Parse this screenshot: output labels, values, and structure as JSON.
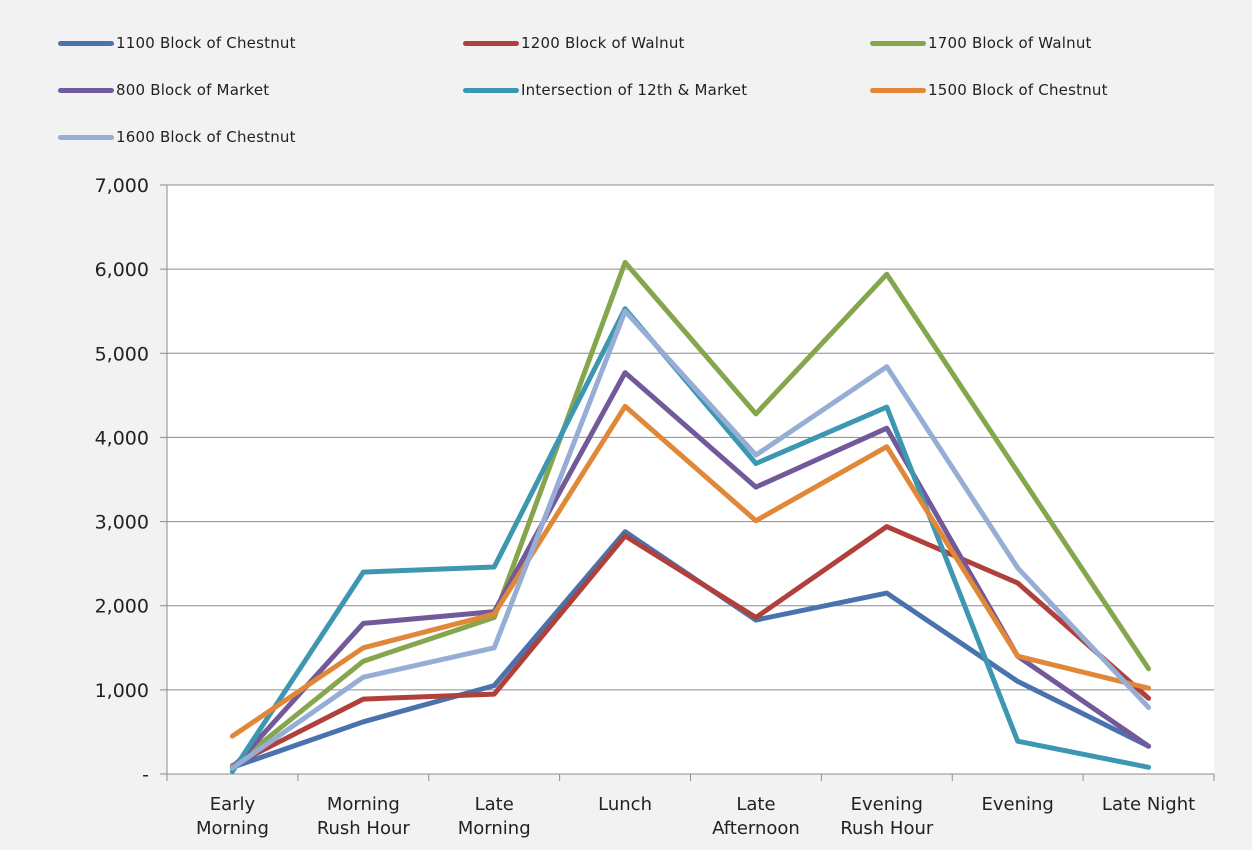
{
  "chart_data": {
    "type": "line",
    "categories": [
      [
        "Early",
        "Morning"
      ],
      [
        "Morning",
        "Rush Hour"
      ],
      [
        "Late",
        "Morning"
      ],
      [
        "Lunch"
      ],
      [
        "Late",
        "Afternoon"
      ],
      [
        "Evening",
        "Rush Hour"
      ],
      [
        "Evening"
      ],
      [
        "Late Night"
      ]
    ],
    "y_tick_labels": [
      "-",
      "1,000",
      "2,000",
      "3,000",
      "4,000",
      "5,000",
      "6,000",
      "7,000"
    ],
    "ylim": [
      0,
      7000
    ],
    "y_step": 1000,
    "grid": "horizontal",
    "legend_position": "top",
    "series": [
      {
        "name": "1100 Block of Chestnut",
        "color": "#4a73ad",
        "values": [
          80,
          620,
          1050,
          2880,
          1830,
          2150,
          1100,
          330
        ]
      },
      {
        "name": "1200 Block of Walnut",
        "color": "#b0403c",
        "values": [
          100,
          890,
          950,
          2830,
          1860,
          2940,
          2270,
          900
        ]
      },
      {
        "name": "1700 Block of Walnut",
        "color": "#86a64e",
        "values": [
          90,
          1340,
          1860,
          6080,
          4280,
          5940,
          3590,
          1250
        ]
      },
      {
        "name": "800 Block of Market",
        "color": "#71599a",
        "values": [
          70,
          1790,
          1930,
          4770,
          3410,
          4110,
          1400,
          330
        ]
      },
      {
        "name": "Intersection of 12th & Market",
        "color": "#3e97b1",
        "values": [
          30,
          2400,
          2460,
          5530,
          3690,
          4360,
          390,
          80
        ]
      },
      {
        "name": "1500 Block of Chestnut",
        "color": "#e08738",
        "values": [
          450,
          1500,
          1900,
          4370,
          3010,
          3890,
          1400,
          1020
        ]
      },
      {
        "name": "1600 Block of Chestnut",
        "color": "#96aed6",
        "values": [
          70,
          1150,
          1500,
          5500,
          3790,
          4840,
          2450,
          790
        ]
      }
    ]
  }
}
